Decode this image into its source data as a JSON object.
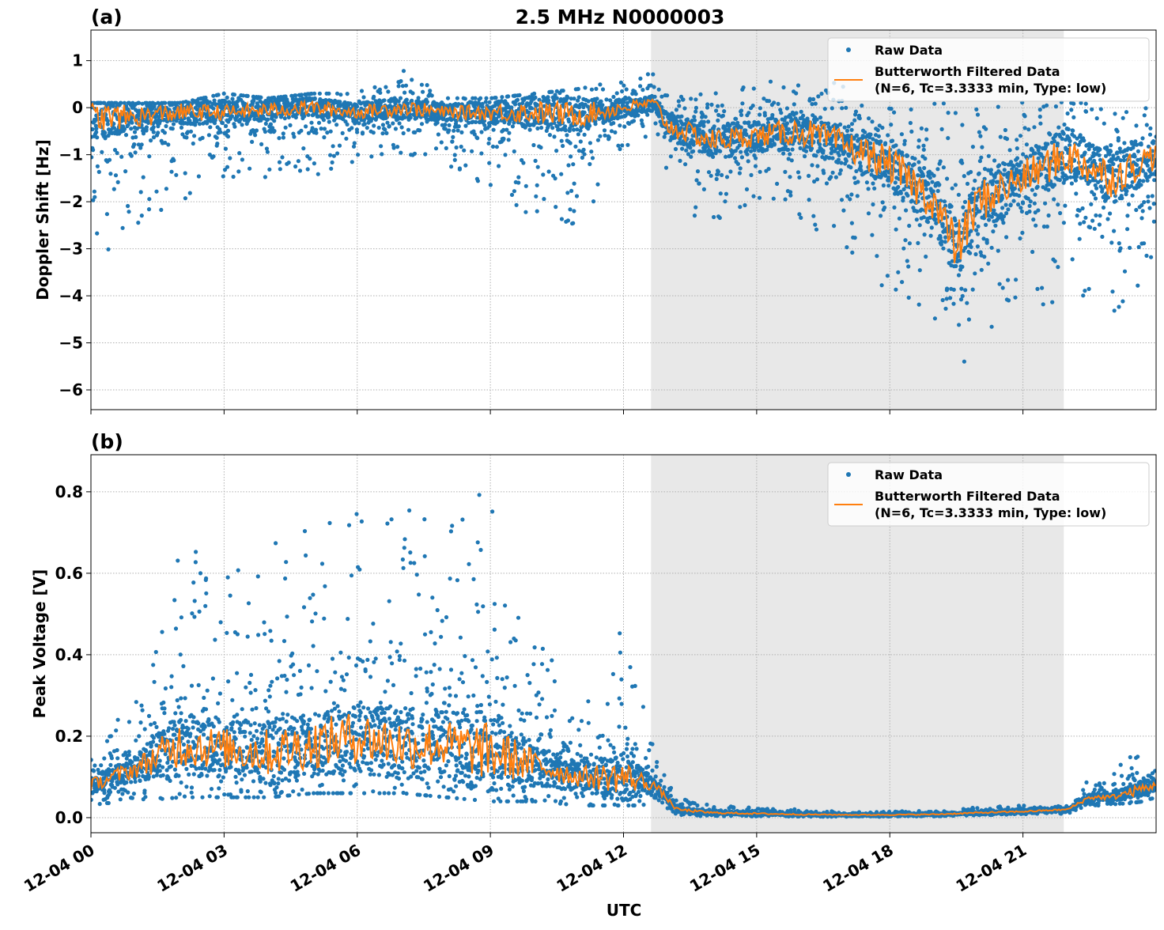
{
  "title": "2.5 MHz N0000003",
  "colors": {
    "raw": "#1f77b4",
    "filtered": "#ff7f0e",
    "shade": "#e8e8e8"
  },
  "chart_data": [
    {
      "type": "scatter",
      "panel_label": "(a)",
      "ylabel": "Doppler Shift [Hz]",
      "xlabel": "",
      "ylim": [
        -6.42,
        1.65
      ],
      "yticks": [
        1,
        0,
        -1,
        -2,
        -3,
        -4,
        -5,
        -6
      ],
      "ytick_labels": [
        "1",
        "0",
        "−1",
        "−2",
        "−3",
        "−4",
        "−5",
        "−6"
      ],
      "grid": true,
      "shaded_span_hours": [
        12.62,
        21.92
      ],
      "legend": {
        "placement": "top-right",
        "entries": [
          "Raw Data",
          "Butterworth Filtered Data",
          "(N=6, Tc=3.3333 min, Type: low)"
        ]
      },
      "series": [
        {
          "name": "Raw Data",
          "kind": "envelope",
          "x_hours": [
            0,
            1,
            2,
            3,
            4,
            5,
            6,
            7,
            8,
            9,
            10,
            11,
            12,
            12.7,
            13,
            14,
            15,
            16,
            17,
            18,
            19,
            19.7,
            20,
            21,
            22,
            23,
            24
          ],
          "min": [
            -3.5,
            -2.5,
            -2,
            -1.5,
            -1.5,
            -1.5,
            -1.2,
            -1,
            -1.2,
            -1.8,
            -2.5,
            -2.5,
            -1,
            -0.5,
            -2,
            -2.5,
            -2,
            -2.5,
            -3,
            -4,
            -4.5,
            -6,
            -5,
            -4,
            -4.5,
            -4.5,
            -3.5
          ],
          "max": [
            0.1,
            0.1,
            0.1,
            0.3,
            0.2,
            0.3,
            0.3,
            0.9,
            0.2,
            0.2,
            0.3,
            0.4,
            0.6,
            0.8,
            0.3,
            0.3,
            0.5,
            0.9,
            0.5,
            0.3,
            0.2,
            0,
            0.2,
            0.2,
            0.1,
            0.1,
            0
          ]
        },
        {
          "name": "Butterworth Filtered Data",
          "kind": "line",
          "x_hours": [
            0,
            1,
            2,
            3,
            4,
            5,
            6,
            7,
            8,
            9,
            10,
            11,
            12,
            12.7,
            13,
            14,
            15,
            16,
            17,
            18,
            19,
            19.5,
            20,
            21,
            22,
            23,
            24
          ],
          "y": [
            -0.2,
            -0.2,
            -0.1,
            -0.1,
            -0.05,
            0,
            -0.1,
            0,
            -0.1,
            -0.1,
            -0.1,
            -0.15,
            0,
            0.1,
            -0.4,
            -0.7,
            -0.6,
            -0.5,
            -0.8,
            -1.2,
            -2,
            -3,
            -2,
            -1.5,
            -1,
            -1.5,
            -1
          ]
        }
      ]
    },
    {
      "type": "scatter",
      "panel_label": "(b)",
      "ylabel": "Peak Voltage [V]",
      "xlabel": "UTC",
      "ylim": [
        -0.037,
        0.891
      ],
      "yticks": [
        0.0,
        0.2,
        0.4,
        0.6,
        0.8
      ],
      "ytick_labels": [
        "0.0",
        "0.2",
        "0.4",
        "0.6",
        "0.8"
      ],
      "xticks_hours": [
        0,
        3,
        6,
        9,
        12,
        15,
        18,
        21
      ],
      "xtick_labels": [
        "12-04 00",
        "12-04 03",
        "12-04 06",
        "12-04 09",
        "12-04 12",
        "12-04 15",
        "12-04 18",
        "12-04 21"
      ],
      "xlim_hours": [
        0,
        24
      ],
      "grid": true,
      "shaded_span_hours": [
        12.62,
        21.92
      ],
      "legend": {
        "placement": "top-right",
        "entries": [
          "Raw Data",
          "Butterworth Filtered Data",
          "(N=6, Tc=3.3333 min, Type: low)"
        ]
      },
      "series": [
        {
          "name": "Raw Data",
          "kind": "envelope",
          "x_hours": [
            0,
            1,
            2,
            3,
            4,
            5,
            6,
            7,
            8,
            9,
            10,
            11,
            12,
            12.7,
            13.2,
            14,
            15,
            16,
            17,
            18,
            19,
            20,
            21,
            22,
            22.5,
            23,
            23.7,
            24
          ],
          "min": [
            0.03,
            0.04,
            0.05,
            0.05,
            0.05,
            0.06,
            0.06,
            0.06,
            0.05,
            0.04,
            0.04,
            0.03,
            0.03,
            0.03,
            0.005,
            0.003,
            0.003,
            0.002,
            0.002,
            0.002,
            0.003,
            0.005,
            0.008,
            0.01,
            0.03,
            0.03,
            0.04,
            0.04
          ],
          "max": [
            0.2,
            0.3,
            0.7,
            0.6,
            0.7,
            0.73,
            0.77,
            0.77,
            0.7,
            0.85,
            0.45,
            0.3,
            0.5,
            0.15,
            0.05,
            0.03,
            0.025,
            0.02,
            0.015,
            0.015,
            0.02,
            0.025,
            0.03,
            0.03,
            0.1,
            0.1,
            0.21,
            0.12
          ]
        },
        {
          "name": "Butterworth Filtered Data",
          "kind": "line",
          "x_hours": [
            0,
            1,
            2,
            3,
            4,
            5,
            6,
            7,
            8,
            9,
            10,
            11,
            12,
            12.7,
            13.2,
            14,
            15,
            16,
            17,
            18,
            19,
            20,
            21,
            22,
            22.5,
            23,
            24
          ],
          "y": [
            0.08,
            0.12,
            0.18,
            0.17,
            0.16,
            0.18,
            0.2,
            0.18,
            0.18,
            0.16,
            0.13,
            0.1,
            0.1,
            0.08,
            0.02,
            0.012,
            0.01,
            0.008,
            0.007,
            0.007,
            0.008,
            0.012,
            0.015,
            0.02,
            0.05,
            0.05,
            0.08
          ]
        }
      ]
    }
  ]
}
